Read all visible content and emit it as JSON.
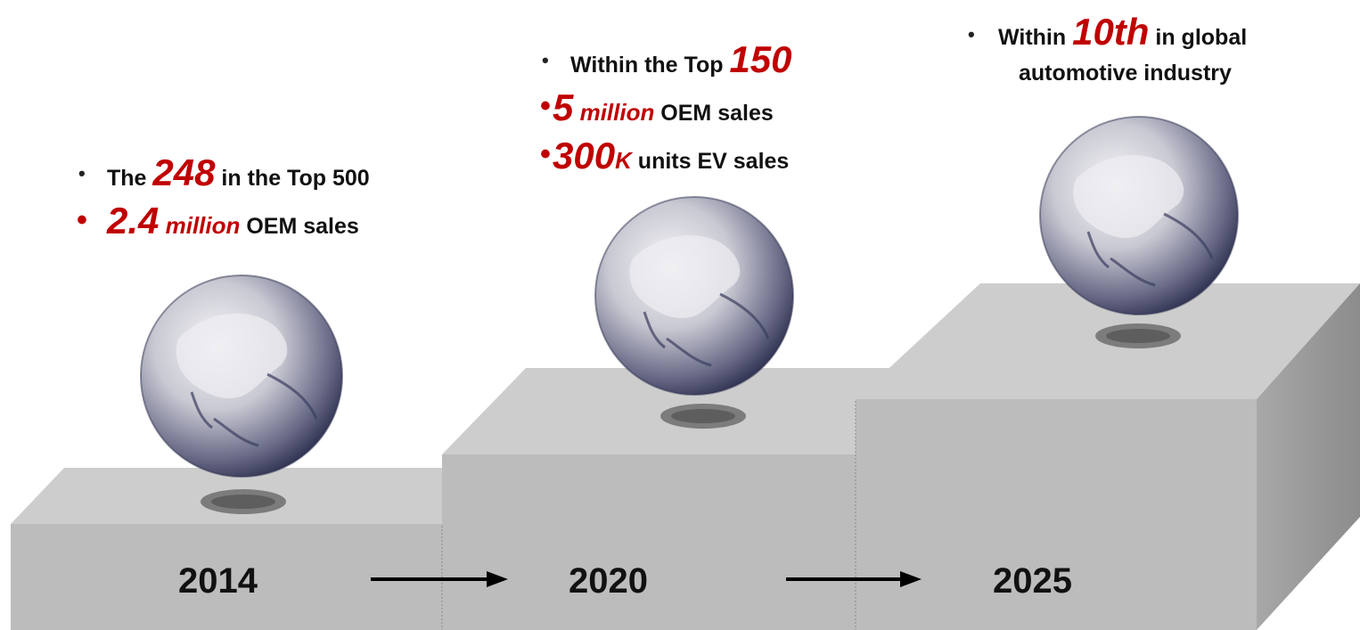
{
  "stages": [
    {
      "year": "2014",
      "bullets": [
        {
          "pre": "The ",
          "highlight": "248",
          "post": " in  the Top 500"
        },
        {
          "highlight": "2.4",
          "highlight_small": " million",
          "post": " OEM sales"
        }
      ]
    },
    {
      "year": "2020",
      "bullets": [
        {
          "pre": "Within the Top ",
          "highlight": "150"
        },
        {
          "highlight": "5",
          "highlight_small": " million",
          "post": " OEM sales"
        },
        {
          "highlight": "300",
          "highlight_small": "K",
          "post": " units EV sales"
        }
      ]
    },
    {
      "year": "2025",
      "bullets": [
        {
          "pre": "Within  ",
          "highlight": "10th",
          "post": "  in global",
          "line2": "automotive industry"
        }
      ]
    }
  ],
  "colors": {
    "highlight": "#c00000",
    "step_front": "#bdbdbd",
    "step_top": "#cfcfcf",
    "step_side": "#9a9a9a",
    "globe_dark": "#3d4060",
    "globe_light": "#f2f2f2"
  }
}
